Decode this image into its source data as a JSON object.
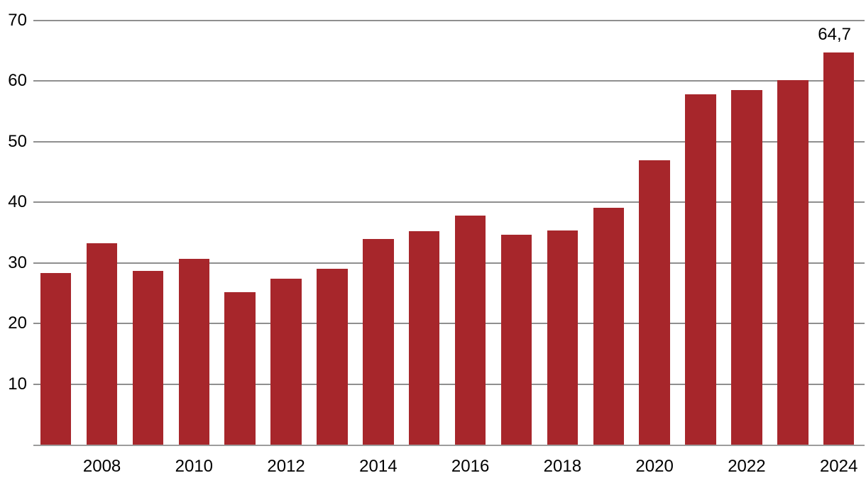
{
  "chart_data": {
    "type": "bar",
    "title": "",
    "xlabel": "",
    "ylabel": "",
    "categories": [
      2007,
      2008,
      2009,
      2010,
      2011,
      2012,
      2013,
      2014,
      2015,
      2016,
      2017,
      2018,
      2019,
      2020,
      2021,
      2022,
      2023,
      2024
    ],
    "values": [
      28.3,
      33.2,
      28.7,
      30.7,
      25.2,
      27.4,
      29.0,
      34.0,
      35.2,
      37.8,
      34.6,
      35.4,
      39.1,
      46.9,
      57.8,
      58.5,
      60.1,
      64.7
    ],
    "data_labels": {
      "2024": "64,7"
    },
    "ylim": [
      0,
      70
    ],
    "yticks": [
      10,
      20,
      30,
      40,
      50,
      60,
      70
    ],
    "xtick_labels": [
      "2008",
      "2010",
      "2012",
      "2014",
      "2016",
      "2018",
      "2020",
      "2022",
      "2024"
    ],
    "grid": "horizontal",
    "legend": "none",
    "colors": {
      "bar": "#A7262B",
      "gridline": "#8f8f8f",
      "baseline": "#9c9c9c",
      "text": "#000000",
      "background": "#ffffff"
    }
  }
}
